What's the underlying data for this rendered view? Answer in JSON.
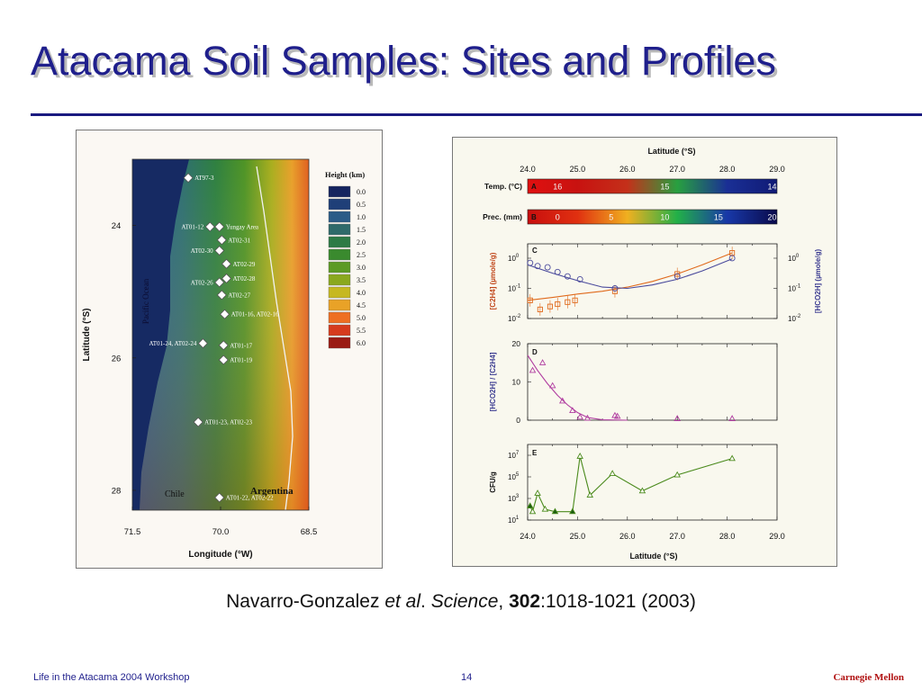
{
  "slide": {
    "title": "Atacama Soil Samples: Sites and Profiles",
    "citation": {
      "authors": "Navarro-Gonzalez",
      "etal": "et al",
      "journal": "Science",
      "volume": "302",
      "pages": ":1018-1021 (2003)"
    },
    "footer": {
      "left": "Life in the Atacama 2004 Workshop",
      "page": "14",
      "right": "Carnegie Mellon"
    },
    "colors": {
      "title": "#1f1f8c",
      "rule": "#1a1a80",
      "footer_right": "#b01010"
    }
  },
  "map": {
    "y_axis_label": "Latitude (°S)",
    "x_axis_label": "Longitude (°W)",
    "y_ticks": [
      "24",
      "26",
      "28"
    ],
    "x_ticks": [
      "71.5",
      "70.0",
      "68.5"
    ],
    "ocean_label": "Pacific Ocean",
    "chile_label": "Chile",
    "argentina_label": "Argentina",
    "legend": {
      "title": "Height (km)",
      "entries": [
        {
          "label": "0.0",
          "color": "#15245f"
        },
        {
          "label": "0.5",
          "color": "#1f3f78"
        },
        {
          "label": "1.0",
          "color": "#2b5c87"
        },
        {
          "label": "1.5",
          "color": "#2f6a6a"
        },
        {
          "label": "2.0",
          "color": "#2d7a45"
        },
        {
          "label": "2.5",
          "color": "#3a8a2e"
        },
        {
          "label": "3.0",
          "color": "#5c9a24"
        },
        {
          "label": "3.5",
          "color": "#8aa81f"
        },
        {
          "label": "4.0",
          "color": "#c6b821"
        },
        {
          "label": "4.5",
          "color": "#e9a227"
        },
        {
          "label": "5.0",
          "color": "#ee6f22"
        },
        {
          "label": "5.5",
          "color": "#d63b1d"
        },
        {
          "label": "6.0",
          "color": "#9a1c14"
        }
      ]
    },
    "sites": [
      {
        "label": "AT97-3",
        "lon": 70.55,
        "lat": 23.28,
        "side": "right"
      },
      {
        "label": "AT01-12",
        "lon": 70.18,
        "lat": 24.02,
        "side": "left"
      },
      {
        "label": "Yungay Area",
        "lon": 70.02,
        "lat": 24.02,
        "side": "right"
      },
      {
        "label": "AT02-31",
        "lon": 69.98,
        "lat": 24.22,
        "side": "right"
      },
      {
        "label": "AT02-30",
        "lon": 70.02,
        "lat": 24.38,
        "side": "left"
      },
      {
        "label": "AT02-29",
        "lon": 69.9,
        "lat": 24.58,
        "side": "right"
      },
      {
        "label": "AT02-26",
        "lon": 70.02,
        "lat": 24.86,
        "side": "left"
      },
      {
        "label": "AT02-28",
        "lon": 69.9,
        "lat": 24.8,
        "side": "right"
      },
      {
        "label": "AT02-27",
        "lon": 69.98,
        "lat": 25.05,
        "side": "right"
      },
      {
        "label": "AT01-16, AT02-16",
        "lon": 69.93,
        "lat": 25.34,
        "side": "right"
      },
      {
        "label": "AT01-24, AT02-24",
        "lon": 70.3,
        "lat": 25.78,
        "side": "left"
      },
      {
        "label": "AT01-17",
        "lon": 69.95,
        "lat": 25.81,
        "side": "right"
      },
      {
        "label": "AT01-19",
        "lon": 69.95,
        "lat": 26.03,
        "side": "right"
      },
      {
        "label": "AT01-23, AT02-23",
        "lon": 70.38,
        "lat": 26.97,
        "side": "right"
      },
      {
        "label": "AT01-22, AT02-22",
        "lon": 70.02,
        "lat": 28.11,
        "side": "right"
      }
    ]
  },
  "profiles": {
    "top_axis_title": "Latitude (°S)",
    "bottom_axis_title": "Latitude (°S)",
    "lat_ticks": [
      "24.0",
      "25.0",
      "26.0",
      "27.0",
      "28.0",
      "29.0"
    ],
    "bars": [
      {
        "name": "temperature-bar",
        "letter": "A",
        "label": "Temp. (°C)",
        "stops": [
          "#e01010",
          "#c81210",
          "#c4301a",
          "#28a040",
          "#1a2f95",
          "#101a75"
        ],
        "values": [
          "16",
          "15",
          "14"
        ]
      },
      {
        "name": "precipitation-bar",
        "letter": "B",
        "label": "Prec. (mm)",
        "stops": [
          "#c80e0e",
          "#e03010",
          "#f0b020",
          "#22b048",
          "#1838a8",
          "#0a0a4a"
        ],
        "values": [
          "0",
          "5",
          "10",
          "15",
          "20"
        ]
      }
    ],
    "panel_c": {
      "letter": "C",
      "left_label": "[C2H4] (µmole/g)",
      "right_label": "[HCO2H] (µmole/g)",
      "y_ticks": [
        "10",
        "10",
        "10"
      ],
      "y_exps": [
        "0",
        "-1",
        "-2"
      ],
      "colors": {
        "c2h4": "#e06a1c",
        "hco2h": "#4a4a9c"
      },
      "c2h4_points": [
        {
          "lat": 24.05,
          "v": 0.04
        },
        {
          "lat": 24.25,
          "v": 0.02
        },
        {
          "lat": 24.45,
          "v": 0.025
        },
        {
          "lat": 24.6,
          "v": 0.03
        },
        {
          "lat": 24.8,
          "v": 0.035
        },
        {
          "lat": 24.95,
          "v": 0.04
        },
        {
          "lat": 25.75,
          "v": 0.08
        },
        {
          "lat": 27.0,
          "v": 0.3
        },
        {
          "lat": 28.1,
          "v": 1.5
        }
      ],
      "hco2h_points": [
        {
          "lat": 24.05,
          "v": 0.7
        },
        {
          "lat": 24.2,
          "v": 0.55
        },
        {
          "lat": 24.4,
          "v": 0.5
        },
        {
          "lat": 24.6,
          "v": 0.35
        },
        {
          "lat": 24.8,
          "v": 0.25
        },
        {
          "lat": 25.05,
          "v": 0.2
        },
        {
          "lat": 25.75,
          "v": 0.1
        },
        {
          "lat": 27.0,
          "v": 0.25
        },
        {
          "lat": 28.1,
          "v": 1.0
        }
      ],
      "c2h4_fit": [
        {
          "lat": 24.0,
          "v": 0.04
        },
        {
          "lat": 24.5,
          "v": 0.05
        },
        {
          "lat": 25.0,
          "v": 0.065
        },
        {
          "lat": 25.5,
          "v": 0.08
        },
        {
          "lat": 26.0,
          "v": 0.11
        },
        {
          "lat": 26.5,
          "v": 0.17
        },
        {
          "lat": 27.0,
          "v": 0.3
        },
        {
          "lat": 27.5,
          "v": 0.6
        },
        {
          "lat": 28.1,
          "v": 1.5
        }
      ],
      "hco2h_fit": [
        {
          "lat": 24.0,
          "v": 0.6
        },
        {
          "lat": 24.5,
          "v": 0.32
        },
        {
          "lat": 25.0,
          "v": 0.18
        },
        {
          "lat": 25.5,
          "v": 0.11
        },
        {
          "lat": 26.0,
          "v": 0.1
        },
        {
          "lat": 26.5,
          "v": 0.13
        },
        {
          "lat": 27.0,
          "v": 0.2
        },
        {
          "lat": 27.5,
          "v": 0.38
        },
        {
          "lat": 28.1,
          "v": 0.95
        }
      ]
    },
    "panel_d": {
      "letter": "D",
      "y_label": "[HCO2H] / [C2H4]",
      "y_ticks": [
        "20",
        "10",
        "0"
      ],
      "color": "#b03ca0",
      "points": [
        {
          "lat": 24.1,
          "v": 13
        },
        {
          "lat": 24.3,
          "v": 15
        },
        {
          "lat": 24.5,
          "v": 9
        },
        {
          "lat": 24.7,
          "v": 5
        },
        {
          "lat": 24.9,
          "v": 2.5
        },
        {
          "lat": 25.05,
          "v": 0.8
        },
        {
          "lat": 25.2,
          "v": 0.5
        },
        {
          "lat": 25.75,
          "v": 1.2
        },
        {
          "lat": 25.8,
          "v": 1.0
        },
        {
          "lat": 27.0,
          "v": 0.4
        },
        {
          "lat": 28.1,
          "v": 0.4
        }
      ],
      "fit": [
        {
          "lat": 24.0,
          "v": 17
        },
        {
          "lat": 24.2,
          "v": 13
        },
        {
          "lat": 24.4,
          "v": 9.5
        },
        {
          "lat": 24.6,
          "v": 6.5
        },
        {
          "lat": 24.8,
          "v": 4
        },
        {
          "lat": 25.0,
          "v": 2
        },
        {
          "lat": 25.2,
          "v": 0.7
        },
        {
          "lat": 25.5,
          "v": 0.1
        },
        {
          "lat": 26.0,
          "v": 0
        }
      ]
    },
    "panel_e": {
      "letter": "E",
      "y_label": "CFU/g",
      "y_ticks": [
        "10",
        "10",
        "10",
        "10"
      ],
      "y_exps": [
        "7",
        "5",
        "3",
        "1"
      ],
      "color": "#4a8a1c",
      "points": [
        {
          "lat": 24.05,
          "v": 200
        },
        {
          "lat": 24.1,
          "v": 60
        },
        {
          "lat": 24.2,
          "v": 3000
        },
        {
          "lat": 24.35,
          "v": 100
        },
        {
          "lat": 24.55,
          "v": 60
        },
        {
          "lat": 24.9,
          "v": 60
        },
        {
          "lat": 25.05,
          "v": 8000000
        },
        {
          "lat": 25.25,
          "v": 2000
        },
        {
          "lat": 25.7,
          "v": 200000
        },
        {
          "lat": 26.3,
          "v": 5000
        },
        {
          "lat": 27.0,
          "v": 150000
        },
        {
          "lat": 28.1,
          "v": 5000000
        }
      ],
      "filled_lats": [
        24.05,
        24.55,
        24.9
      ]
    }
  }
}
